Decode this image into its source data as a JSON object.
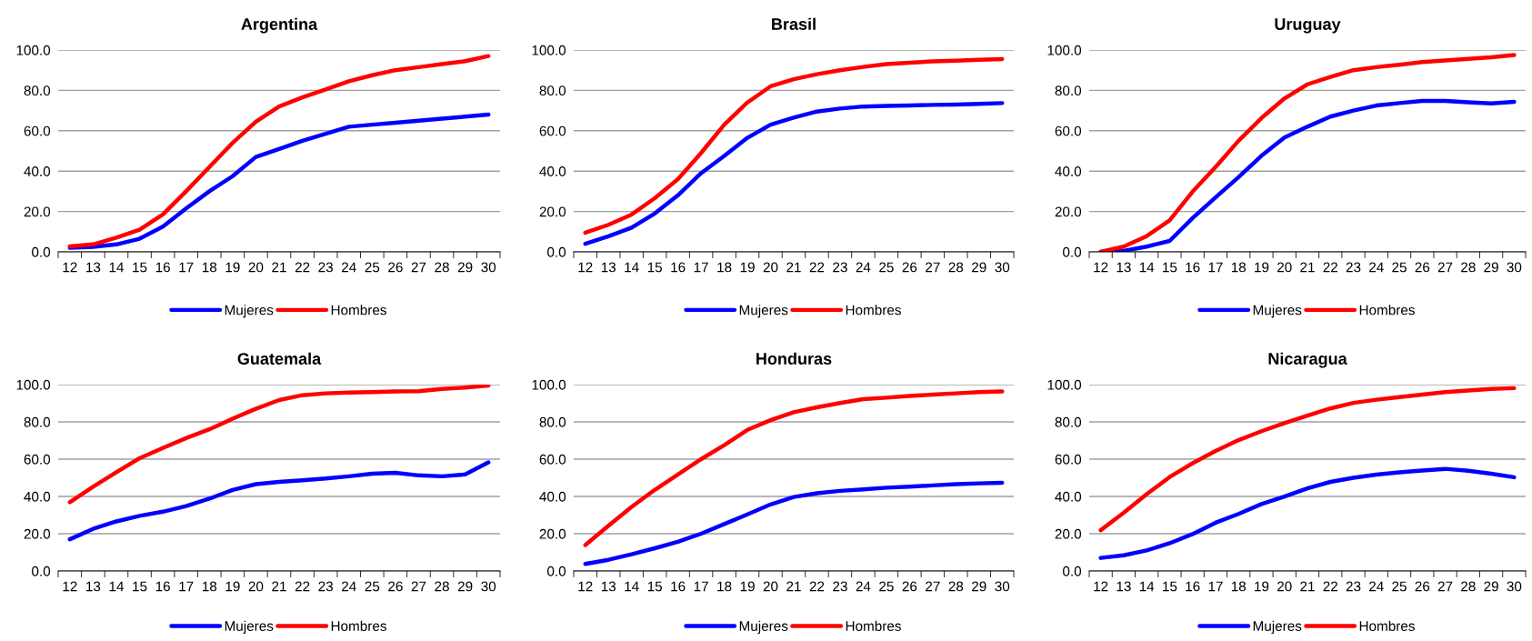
{
  "chart_data": [
    {
      "type": "line",
      "title": "Argentina",
      "categories": [
        "12",
        "13",
        "14",
        "15",
        "16",
        "17",
        "18",
        "19",
        "20",
        "21",
        "22",
        "23",
        "24",
        "25",
        "26",
        "27",
        "28",
        "29",
        "30"
      ],
      "series": [
        {
          "name": "Mujeres",
          "color": "#0000ff",
          "values": [
            2,
            2.5,
            3.7,
            6.5,
            12.5,
            21.5,
            30,
            37.5,
            47,
            51,
            55,
            58.5,
            62,
            63,
            64,
            65,
            66,
            67,
            68
          ]
        },
        {
          "name": "Hombres",
          "color": "#ff0000",
          "values": [
            2.7,
            3.7,
            7,
            11,
            18.5,
            30,
            42,
            54,
            64.5,
            72,
            76.5,
            80.5,
            84.5,
            87.5,
            90,
            91.5,
            93,
            94.5,
            97
          ]
        }
      ],
      "ylim": [
        0,
        100
      ],
      "yticks": [
        {
          "value": 0,
          "label": "0.0"
        },
        {
          "value": 20,
          "label": "20.0"
        },
        {
          "value": 40,
          "label": "40.0"
        },
        {
          "value": 60,
          "label": "60.0"
        },
        {
          "value": 80,
          "label": "80.0"
        },
        {
          "value": 100,
          "label": "100.0"
        }
      ],
      "grid": "y",
      "legend": "bottom",
      "marker": "none",
      "line_style": "solid"
    },
    {
      "type": "line",
      "title": "Brasil",
      "categories": [
        "12",
        "13",
        "14",
        "15",
        "16",
        "17",
        "18",
        "19",
        "20",
        "21",
        "22",
        "23",
        "24",
        "25",
        "26",
        "27",
        "28",
        "29",
        "30"
      ],
      "series": [
        {
          "name": "Mujeres",
          "color": "#0000ff",
          "values": [
            4,
            7.7,
            12,
            19,
            28,
            39,
            47.5,
            56.5,
            63,
            66.5,
            69.5,
            71,
            72,
            72.3,
            72.5,
            72.8,
            73,
            73.3,
            73.7
          ]
        },
        {
          "name": "Hombres",
          "color": "#ff0000",
          "values": [
            9.5,
            13.4,
            18.5,
            26.6,
            36,
            49,
            63,
            74,
            82,
            85.5,
            88,
            90,
            91.6,
            93,
            93.7,
            94.4,
            94.7,
            95.2,
            95.5
          ]
        }
      ],
      "ylim": [
        0,
        100
      ],
      "yticks": [
        {
          "value": 0,
          "label": "0.0"
        },
        {
          "value": 20,
          "label": "20.0"
        },
        {
          "value": 40,
          "label": "40.0"
        },
        {
          "value": 60,
          "label": "60.0"
        },
        {
          "value": 80,
          "label": "80.0"
        },
        {
          "value": 100,
          "label": "100.0"
        }
      ],
      "grid": "y",
      "legend": "bottom",
      "marker": "none",
      "line_style": "solid"
    },
    {
      "type": "line",
      "title": "Uruguay",
      "categories": [
        "12",
        "13",
        "14",
        "15",
        "16",
        "17",
        "18",
        "19",
        "20",
        "21",
        "22",
        "23",
        "24",
        "25",
        "26",
        "27",
        "28",
        "29",
        "30"
      ],
      "series": [
        {
          "name": "Mujeres",
          "color": "#0000ff",
          "values": [
            0,
            0.5,
            2.6,
            5.4,
            16.7,
            27,
            37,
            47.6,
            56.6,
            62,
            67,
            70,
            72.5,
            73.7,
            74.8,
            74.8,
            74.1,
            73.5,
            74.3
          ]
        },
        {
          "name": "Hombres",
          "color": "#ff0000",
          "values": [
            0,
            2.6,
            7.8,
            15.6,
            29.8,
            42,
            55,
            66.3,
            76,
            83,
            86.7,
            90,
            91.5,
            92.7,
            94,
            94.8,
            95.6,
            96.4,
            97.5
          ]
        }
      ],
      "ylim": [
        0,
        100
      ],
      "yticks": [
        {
          "value": 0,
          "label": "0.0"
        },
        {
          "value": 20,
          "label": "20.0"
        },
        {
          "value": 40,
          "label": "40.0"
        },
        {
          "value": 60,
          "label": "60.0"
        },
        {
          "value": 80,
          "label": "80.0"
        },
        {
          "value": 100,
          "label": "100.0"
        }
      ],
      "grid": "y",
      "legend": "bottom",
      "marker": "none",
      "line_style": "solid"
    },
    {
      "type": "line",
      "title": "Guatemala",
      "categories": [
        "12",
        "13",
        "14",
        "15",
        "16",
        "17",
        "18",
        "19",
        "20",
        "21",
        "22",
        "23",
        "24",
        "25",
        "26",
        "27",
        "28",
        "29",
        "30"
      ],
      "series": [
        {
          "name": "Mujeres",
          "color": "#0000ff",
          "values": [
            17,
            22.6,
            26.6,
            29.6,
            31.8,
            34.8,
            38.8,
            43.5,
            46.6,
            47.8,
            48.7,
            49.6,
            50.8,
            52.2,
            52.7,
            51.3,
            50.8,
            51.8,
            58.3
          ]
        },
        {
          "name": "Hombres",
          "color": "#ff0000",
          "values": [
            36.9,
            45.2,
            53,
            60.5,
            66,
            71.3,
            76,
            81.7,
            87,
            91.7,
            94.3,
            95.3,
            95.7,
            96,
            96.3,
            96.5,
            97.7,
            98.4,
            99.5
          ]
        }
      ],
      "ylim": [
        0,
        100
      ],
      "yticks": [
        {
          "value": 0,
          "label": "0.0"
        },
        {
          "value": 20,
          "label": "20.0"
        },
        {
          "value": 40,
          "label": "40.0"
        },
        {
          "value": 60,
          "label": "60.0"
        },
        {
          "value": 80,
          "label": "80.0"
        },
        {
          "value": 100,
          "label": "100.0"
        }
      ],
      "grid": "y",
      "legend": "bottom",
      "marker": "none",
      "line_style": "solid"
    },
    {
      "type": "line",
      "title": "Honduras",
      "categories": [
        "12",
        "13",
        "14",
        "15",
        "16",
        "17",
        "18",
        "19",
        "20",
        "21",
        "22",
        "23",
        "24",
        "25",
        "26",
        "27",
        "28",
        "29",
        "30"
      ],
      "series": [
        {
          "name": "Mujeres",
          "color": "#0000ff",
          "values": [
            3.8,
            6,
            9,
            12.2,
            15.7,
            20,
            25.2,
            30.4,
            35.7,
            39.7,
            41.7,
            43,
            43.8,
            44.7,
            45.2,
            45.9,
            46.6,
            47,
            47.3
          ]
        },
        {
          "name": "Hombres",
          "color": "#ff0000",
          "values": [
            13.9,
            24.3,
            34.4,
            43.5,
            51.8,
            60,
            67.5,
            75.7,
            80.9,
            85.2,
            87.8,
            90.1,
            92.2,
            93,
            93.9,
            94.6,
            95.3,
            96,
            96.3
          ]
        }
      ],
      "ylim": [
        0,
        100
      ],
      "yticks": [
        {
          "value": 0,
          "label": "0.0"
        },
        {
          "value": 20,
          "label": "20.0"
        },
        {
          "value": 40,
          "label": "40.0"
        },
        {
          "value": 60,
          "label": "60.0"
        },
        {
          "value": 80,
          "label": "80.0"
        },
        {
          "value": 100,
          "label": "100.0"
        }
      ],
      "grid": "y",
      "legend": "bottom",
      "marker": "none",
      "line_style": "solid"
    },
    {
      "type": "line",
      "title": "Nicaragua",
      "categories": [
        "12",
        "13",
        "14",
        "15",
        "16",
        "17",
        "18",
        "19",
        "20",
        "21",
        "22",
        "23",
        "24",
        "25",
        "26",
        "27",
        "28",
        "29",
        "30"
      ],
      "series": [
        {
          "name": "Mujeres",
          "color": "#0000ff",
          "values": [
            7,
            8.4,
            11,
            14.9,
            19.8,
            25.9,
            30.6,
            35.9,
            39.9,
            44.3,
            47.8,
            50,
            51.7,
            52.9,
            53.9,
            54.8,
            53.8,
            52.2,
            50.3
          ]
        },
        {
          "name": "Hombres",
          "color": "#ff0000",
          "values": [
            21.9,
            31.2,
            41.2,
            50.4,
            57.8,
            64.4,
            70.2,
            75,
            79.3,
            83.4,
            87.2,
            90.2,
            91.9,
            93.3,
            94.6,
            96,
            96.8,
            97.7,
            98.1
          ]
        }
      ],
      "ylim": [
        0,
        100
      ],
      "yticks": [
        {
          "value": 0,
          "label": "0.0"
        },
        {
          "value": 20,
          "label": "20.0"
        },
        {
          "value": 40,
          "label": "40.0"
        },
        {
          "value": 60,
          "label": "60.0"
        },
        {
          "value": 80,
          "label": "80.0"
        },
        {
          "value": 100,
          "label": "100.0"
        }
      ],
      "grid": "y",
      "legend": "bottom",
      "marker": "none",
      "line_style": "solid"
    }
  ]
}
